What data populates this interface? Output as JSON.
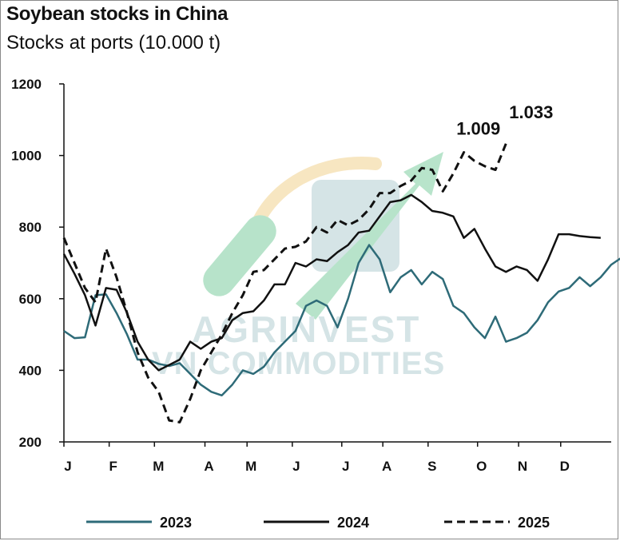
{
  "chart_data": {
    "type": "line",
    "title": "Soybean stocks in China",
    "subtitle": "Stocks at ports (10.000 t)",
    "ylim": [
      200,
      1200
    ],
    "yticks": [
      200,
      400,
      600,
      800,
      1000,
      1200
    ],
    "xlim": [
      0,
      52
    ],
    "months": [
      {
        "label": "J",
        "week": 0
      },
      {
        "label": "F",
        "week": 4.3
      },
      {
        "label": "M",
        "week": 8.6
      },
      {
        "label": "A",
        "week": 13.4
      },
      {
        "label": "M",
        "week": 17.4
      },
      {
        "label": "J",
        "week": 21.7
      },
      {
        "label": "J",
        "week": 26.4
      },
      {
        "label": "A",
        "week": 30.3
      },
      {
        "label": "S",
        "week": 34.6
      },
      {
        "label": "O",
        "week": 39.3
      },
      {
        "label": "N",
        "week": 43.2
      },
      {
        "label": "D",
        "week": 47.2
      }
    ],
    "series": [
      {
        "name": "2023",
        "color": "#2e6b78",
        "dash": "solid",
        "values": [
          510,
          490,
          492,
          610,
          612,
          560,
          500,
          430,
          430,
          418,
          412,
          420,
          390,
          360,
          340,
          330,
          360,
          400,
          390,
          410,
          450,
          480,
          510,
          580,
          595,
          580,
          520,
          600,
          700,
          750,
          710,
          618,
          660,
          680,
          640,
          675,
          655,
          580,
          560,
          520,
          490,
          550,
          480,
          490,
          505,
          540,
          590,
          620,
          630,
          660,
          635,
          660,
          695,
          715
        ]
      },
      {
        "name": "2024",
        "color": "#111111",
        "dash": "solid",
        "values": [
          725,
          670,
          610,
          525,
          630,
          625,
          560,
          480,
          430,
          400,
          415,
          430,
          480,
          460,
          480,
          490,
          540,
          560,
          565,
          595,
          640,
          640,
          700,
          690,
          710,
          705,
          730,
          750,
          785,
          790,
          830,
          870,
          875,
          890,
          870,
          845,
          840,
          830,
          770,
          795,
          740,
          690,
          675,
          690,
          680,
          650,
          710,
          780,
          780,
          775,
          772,
          770
        ]
      },
      {
        "name": "2025",
        "color": "#111111",
        "dash": "dashed",
        "values": [
          770,
          700,
          630,
          590,
          740,
          660,
          560,
          450,
          380,
          340,
          260,
          255,
          320,
          400,
          450,
          500,
          560,
          610,
          675,
          680,
          710,
          740,
          745,
          760,
          800,
          785,
          820,
          805,
          820,
          850,
          895,
          895,
          915,
          930,
          965,
          960,
          900,
          950,
          1009,
          985,
          970,
          960,
          1033
        ]
      }
    ],
    "annotations": [
      {
        "text": "1.009",
        "week": 38.2,
        "value": 1009
      },
      {
        "text": "1.033",
        "week": 42,
        "value": 1033
      }
    ],
    "legend": {
      "placement": "bottom",
      "items": [
        "2023",
        "2024",
        "2025"
      ]
    },
    "grid": false
  },
  "watermark": {
    "text_top": "AGRINVEST",
    "text_bottom": "VN COMMODITIES",
    "arrow_color": "#34b26a",
    "box_color": "#8ab4b8",
    "ring_color": "#e9b84f"
  }
}
